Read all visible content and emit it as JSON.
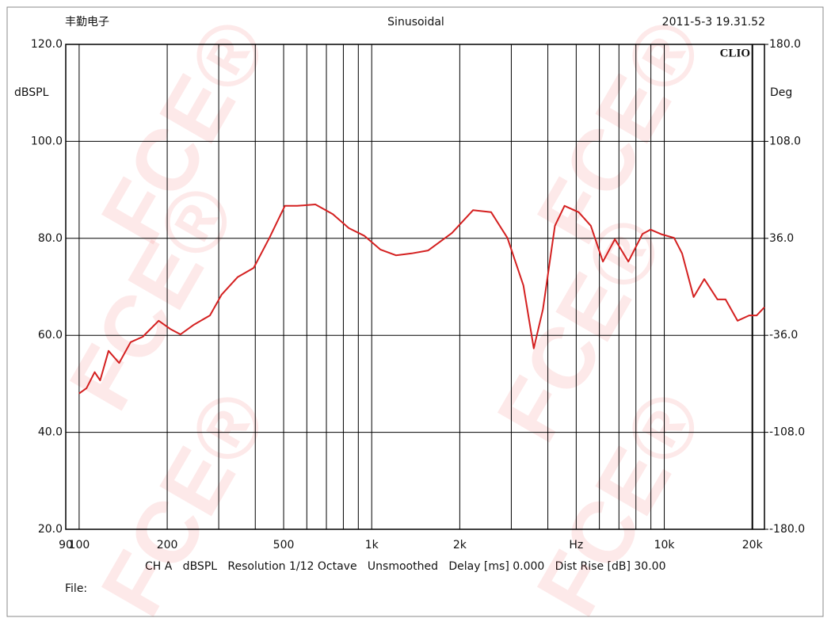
{
  "chart_data": {
    "type": "line",
    "title": "Sinusoidal",
    "header_left": "丰勤电子",
    "header_right": "2011-5-3 19.31.52",
    "logo": "CLIO",
    "watermark": "FCE®",
    "y_label": "dBSPL",
    "y2_label": "Deg",
    "footer": "CH A   dBSPL   Resolution 1/12 Octave   Unsmoothed   Delay [ms] 0.000   Dist Rise [dB] 30.00",
    "file_label": "File:",
    "x_scale": "log",
    "grid": true,
    "xlim": [
      90,
      22000
    ],
    "xticks": [
      90,
      100,
      200,
      500,
      {
        "value": 1000,
        "label": "1k"
      },
      {
        "value": 2000,
        "label": "2k"
      },
      {
        "value": 5000,
        "label": "Hz"
      },
      {
        "value": 10000,
        "label": "10k"
      },
      {
        "value": 20000,
        "label": "20k"
      }
    ],
    "xgrid_minor": [
      300,
      400,
      600,
      700,
      800,
      900,
      3000,
      4000,
      6000,
      7000,
      8000,
      9000
    ],
    "ylim": [
      20,
      120
    ],
    "yticks": [
      {
        "value": 20,
        "label": "20.0"
      },
      {
        "value": 40,
        "label": "40.0"
      },
      {
        "value": 60,
        "label": "60.0"
      },
      {
        "value": 80,
        "label": "80.0"
      },
      {
        "value": 100,
        "label": "100.0"
      },
      {
        "value": 120,
        "label": "120.0"
      }
    ],
    "y2lim": [
      -180,
      180
    ],
    "y2ticks": [
      {
        "value": -180,
        "label": "-180.0"
      },
      {
        "value": -108,
        "label": "-108.0"
      },
      {
        "value": -36,
        "label": "-36.0"
      },
      {
        "value": 36,
        "label": "36.0"
      },
      {
        "value": 108,
        "label": "108.0"
      },
      {
        "value": 180,
        "label": "180.0"
      }
    ],
    "x": [
      100,
      106,
      113,
      118,
      126,
      137,
      150,
      165,
      187,
      205,
      222,
      247,
      280,
      307,
      348,
      395,
      447,
      505,
      556,
      642,
      736,
      835,
      945,
      1070,
      1210,
      1370,
      1560,
      1880,
      2220,
      2560,
      2910,
      3300,
      3580,
      3850,
      4230,
      4560,
      5100,
      5610,
      6170,
      6780,
      7540,
      8420,
      8980,
      9820,
      10800,
      11500,
      12600,
      13700,
      15200,
      16200,
      17800,
      19500,
      20700,
      22000
    ],
    "series": [
      {
        "name": "CH A",
        "color": "#d42020",
        "values": [
          48.0,
          49.1,
          52.4,
          50.7,
          56.8,
          54.3,
          58.6,
          59.7,
          63.0,
          61.3,
          60.2,
          62.2,
          64.1,
          68.4,
          72.0,
          73.9,
          80.1,
          86.7,
          86.7,
          87.0,
          85.0,
          82.1,
          80.5,
          77.7,
          76.5,
          76.9,
          77.5,
          81.1,
          85.8,
          85.4,
          80.1,
          70.3,
          57.3,
          65.4,
          82.6,
          86.7,
          85.4,
          82.6,
          75.2,
          79.8,
          75.2,
          80.9,
          81.8,
          80.8,
          80.1,
          76.9,
          67.9,
          71.6,
          67.4,
          67.4,
          63.0,
          64.1,
          64.1,
          65.8
        ]
      }
    ]
  }
}
